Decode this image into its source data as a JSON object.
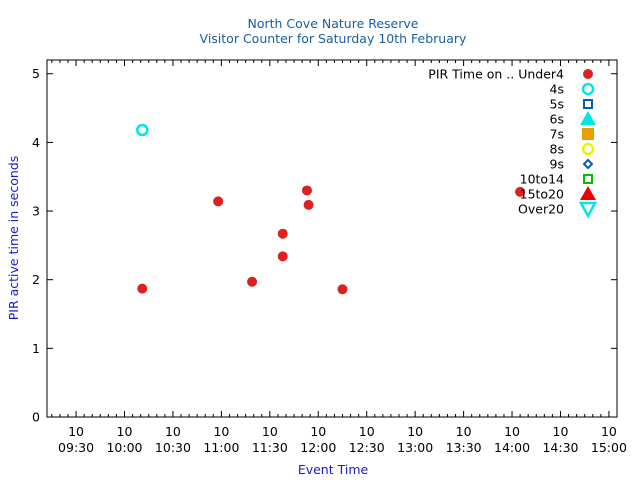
{
  "chart_data": {
    "type": "scatter",
    "title": "North Cove Nature Reserve",
    "subtitle": "Visitor Counter for Saturday 10th February",
    "xlabel": "Event Time",
    "ylabel": "PIR active time in seconds",
    "legend_title": "PIR Time on .. Under4",
    "legend_position": "top-right",
    "grid": false,
    "xlim": [
      "09:12",
      "15:05"
    ],
    "ylim": [
      0,
      5.2
    ],
    "x_tick_day": "10",
    "x_ticks": [
      "09:30",
      "10:00",
      "10:30",
      "11:00",
      "11:30",
      "12:00",
      "12:30",
      "13:00",
      "13:30",
      "14:00",
      "14:30",
      "15:00"
    ],
    "y_ticks": [
      "0",
      "1",
      "2",
      "3",
      "4",
      "5"
    ],
    "colors": {
      "title": "#1a5fa0",
      "axis_label": "#1a1acc"
    },
    "series": [
      {
        "name": "PIR Time on .. Under4",
        "marker": "filled-circle",
        "color": "#dd2020",
        "points": [
          [
            "10:11",
            1.87
          ],
          [
            "10:58",
            3.14
          ],
          [
            "11:19",
            1.97
          ],
          [
            "11:38",
            2.67
          ],
          [
            "11:38",
            2.34
          ],
          [
            "11:53",
            3.3
          ],
          [
            "11:54",
            3.09
          ],
          [
            "12:15",
            1.86
          ],
          [
            "14:05",
            3.28
          ]
        ]
      },
      {
        "name": "4s",
        "marker": "open-circle",
        "color": "#00e5e5",
        "points": [
          [
            "10:11",
            4.18
          ]
        ]
      },
      {
        "name": "5s",
        "marker": "open-square",
        "color": "#0060b0",
        "points": []
      },
      {
        "name": "6s",
        "marker": "filled-triangle-up",
        "color": "#00e5e5",
        "points": []
      },
      {
        "name": "7s",
        "marker": "filled-square",
        "color": "#e8a000",
        "points": []
      },
      {
        "name": "8s",
        "marker": "open-circle",
        "color": "#f0f000",
        "points": []
      },
      {
        "name": "9s",
        "marker": "open-diamond",
        "color": "#0060b0",
        "points": []
      },
      {
        "name": "10to14",
        "marker": "open-square",
        "color": "#00c000",
        "points": []
      },
      {
        "name": "15to20",
        "marker": "filled-triangle-up",
        "color": "#ee0000",
        "points": []
      },
      {
        "name": "Over20",
        "marker": "open-triangle-down",
        "color": "#00e5e5",
        "points": []
      }
    ]
  }
}
